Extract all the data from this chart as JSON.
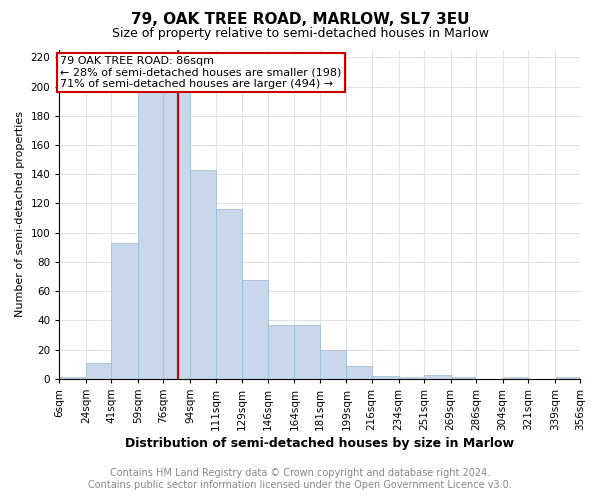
{
  "title": "79, OAK TREE ROAD, MARLOW, SL7 3EU",
  "subtitle": "Size of property relative to semi-detached houses in Marlow",
  "xlabel": "Distribution of semi-detached houses by size in Marlow",
  "ylabel": "Number of semi-detached properties",
  "footnote1": "Contains HM Land Registry data © Crown copyright and database right 2024.",
  "footnote2": "Contains public sector information licensed under the Open Government Licence v3.0.",
  "annotation_line1": "79 OAK TREE ROAD: 86sqm",
  "annotation_line2": "← 28% of semi-detached houses are smaller (198)",
  "annotation_line3": "71% of semi-detached houses are larger (494) →",
  "property_size": 86,
  "bar_color": "#c8d8ea",
  "bar_edge_color": "#9ab8d0",
  "marker_color": "#cc0000",
  "annotation_box_color": "#cc0000",
  "bins": [
    6,
    24,
    41,
    59,
    76,
    94,
    111,
    129,
    146,
    164,
    181,
    199,
    216,
    234,
    251,
    269,
    286,
    304,
    321,
    339,
    356
  ],
  "bin_labels": [
    "6sqm",
    "24sqm",
    "41sqm",
    "59sqm",
    "76sqm",
    "94sqm",
    "111sqm",
    "129sqm",
    "146sqm",
    "164sqm",
    "181sqm",
    "199sqm",
    "216sqm",
    "234sqm",
    "251sqm",
    "269sqm",
    "286sqm",
    "304sqm",
    "321sqm",
    "339sqm",
    "356sqm"
  ],
  "counts": [
    1,
    11,
    93,
    200,
    200,
    143,
    116,
    68,
    37,
    37,
    20,
    9,
    2,
    1,
    3,
    1,
    0,
    1,
    0,
    1
  ],
  "ylim": [
    0,
    225
  ],
  "yticks": [
    0,
    20,
    40,
    60,
    80,
    100,
    120,
    140,
    160,
    180,
    200,
    220
  ],
  "title_fontsize": 11,
  "subtitle_fontsize": 9,
  "xlabel_fontsize": 9,
  "ylabel_fontsize": 8,
  "tick_fontsize": 7.5,
  "footnote_fontsize": 7,
  "ann_fontsize": 8
}
